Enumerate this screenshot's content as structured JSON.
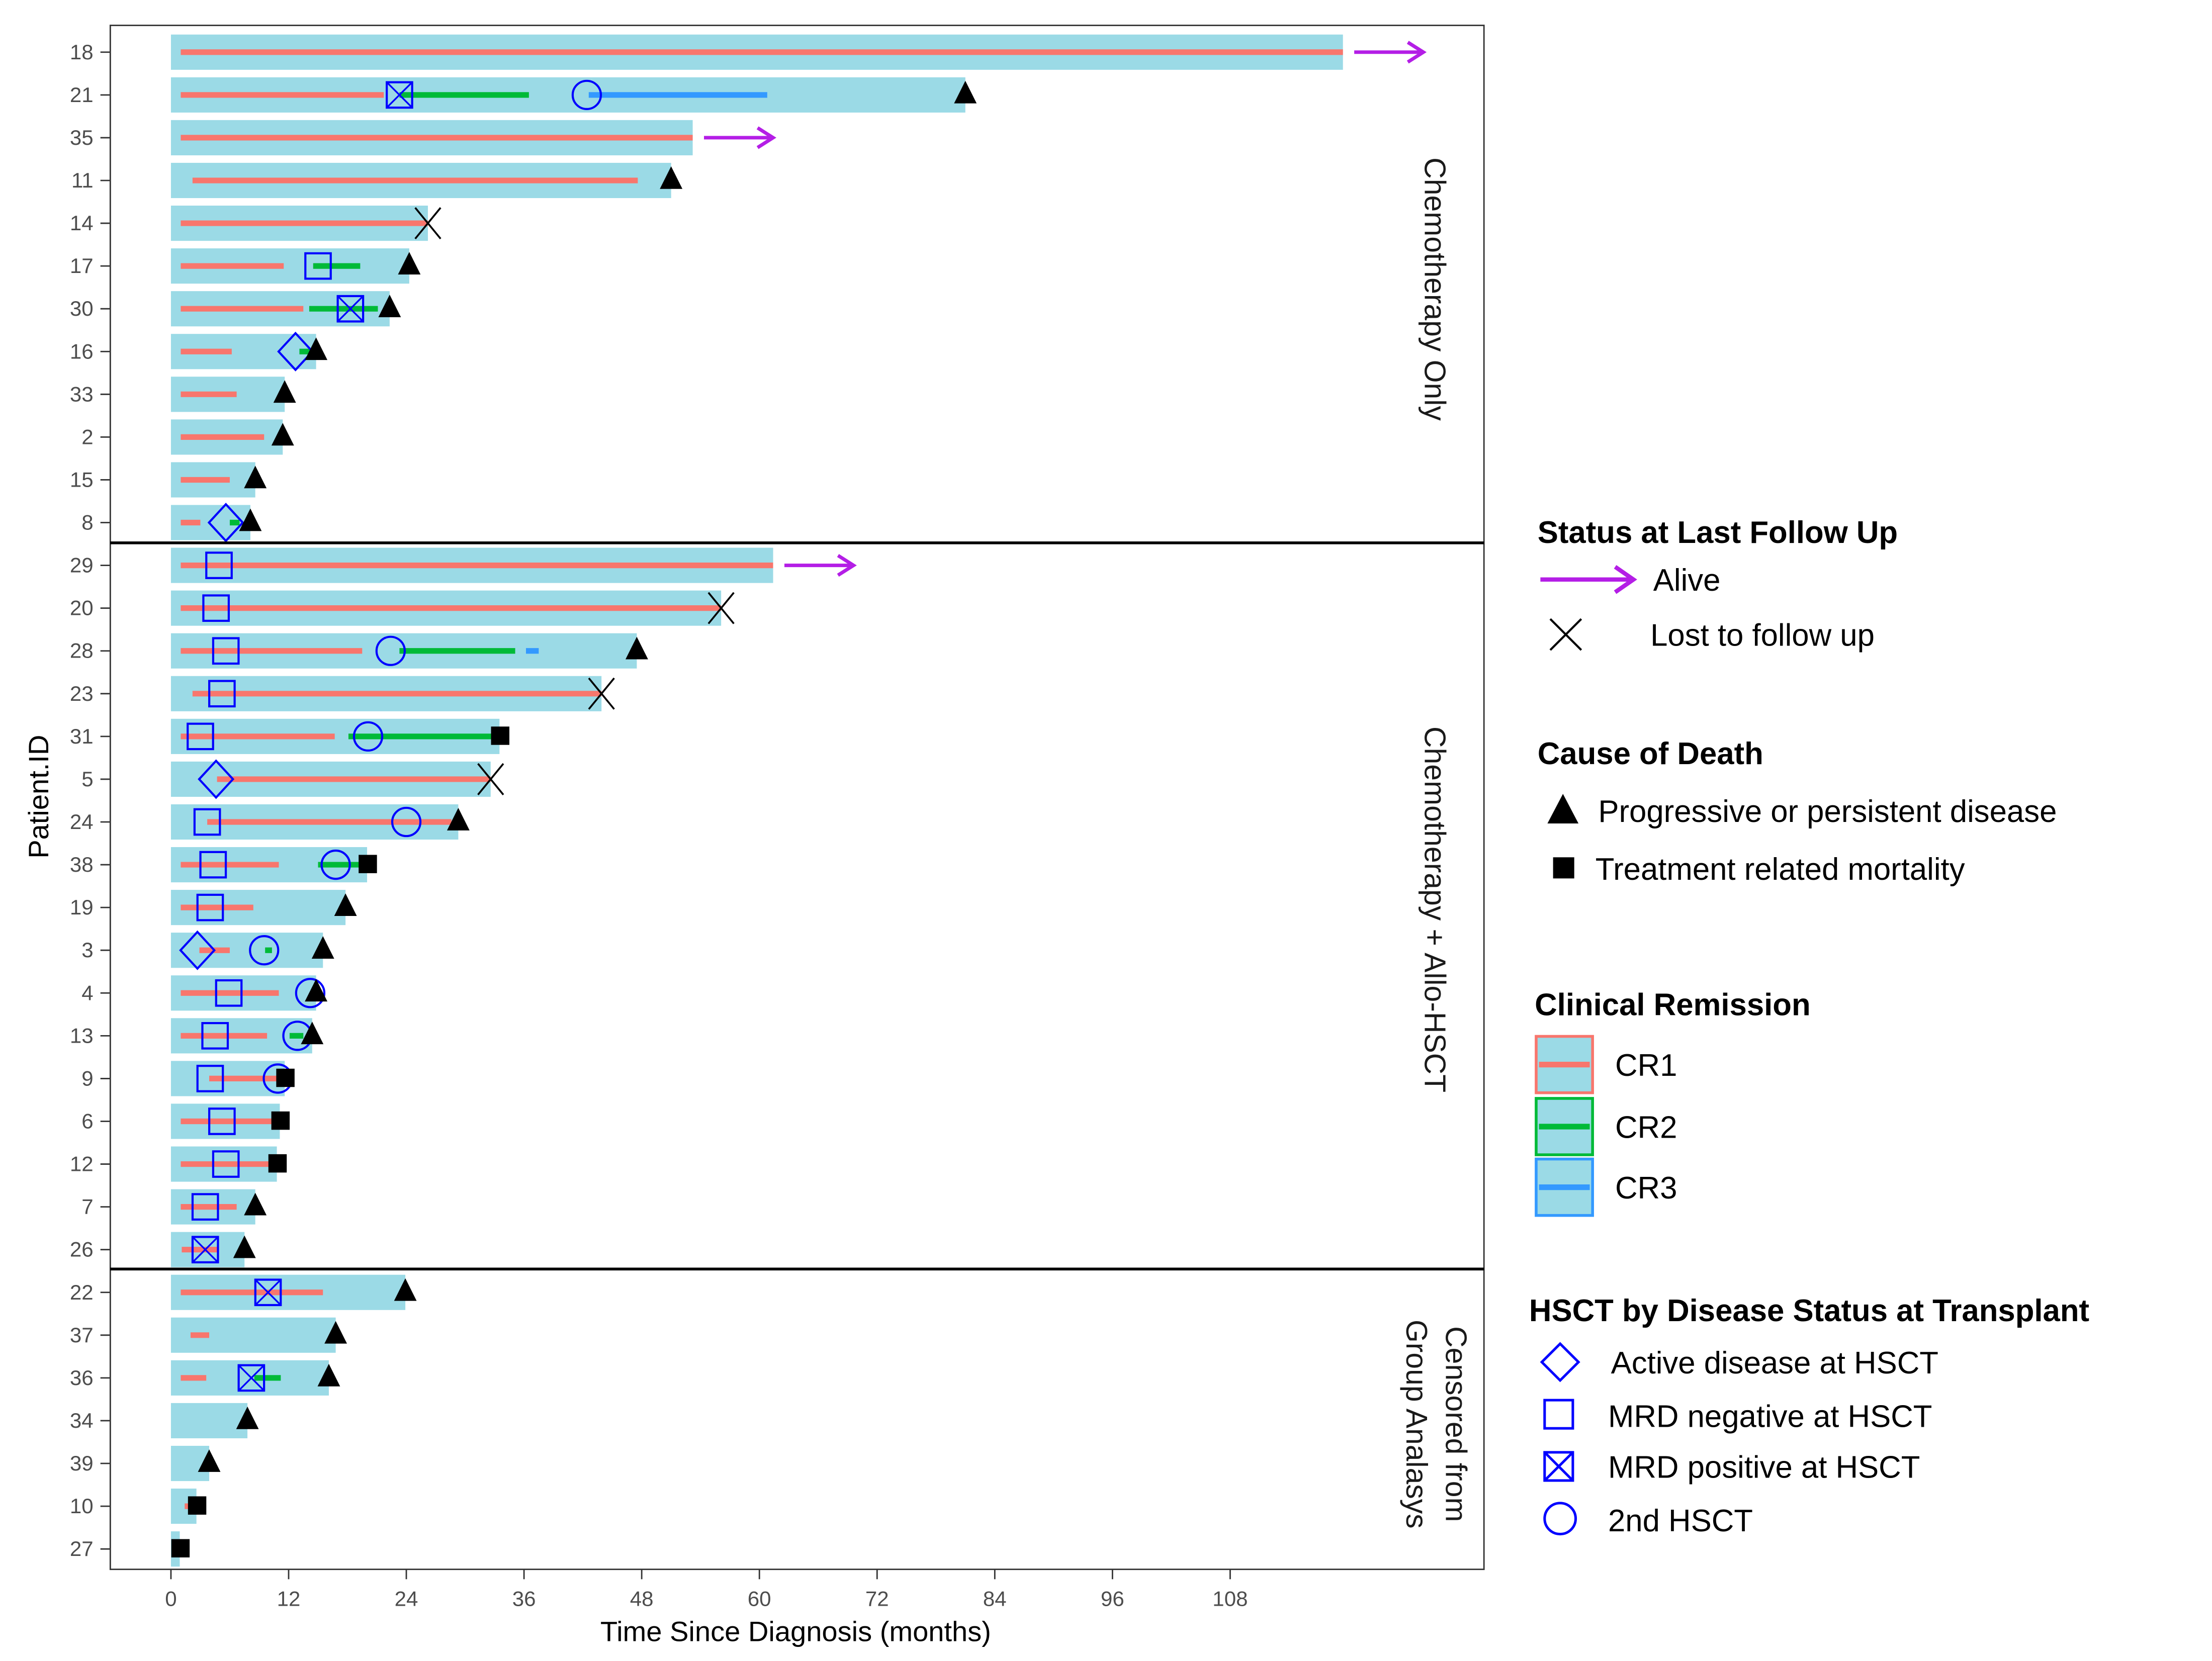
{
  "chart_data": {
    "type": "swimmer",
    "xlabel": "Time Since Diagnosis (months)",
    "ylabel": "Patient.ID",
    "xlim": [
      -10,
      124
    ],
    "xticks": [
      0,
      12,
      24,
      36,
      48,
      60,
      72,
      84,
      96,
      108
    ],
    "groups": [
      {
        "label": "Chemotherapy Only",
        "label_lines": [
          "Chemotherapy Only"
        ]
      },
      {
        "label": "Chemotherapy + Allo-HSCT",
        "label_lines": [
          "Chemotherapy + Allo-HSCT"
        ]
      },
      {
        "label": "Censored from Group Analasys",
        "label_lines": [
          "Censored from",
          "Group Analasys"
        ]
      }
    ],
    "colors": {
      "bar": "#9bdae6",
      "CR1": "#f8766d",
      "CR2": "#00ba38",
      "CR3": "#3399ff",
      "hsct": "#0000ff",
      "alive": "#b41ee6",
      "event": "#000000"
    },
    "patients": [
      {
        "id": "18",
        "group": 0,
        "end": 119.5,
        "status": "alive",
        "cr": [
          [
            1,
            119.5,
            1
          ]
        ],
        "hsct": []
      },
      {
        "id": "21",
        "group": 0,
        "end": 81,
        "status": "progressive",
        "cr": [
          [
            1,
            21.7,
            1
          ],
          [
            23.3,
            36.5,
            2
          ],
          [
            42.6,
            60.8,
            3
          ]
        ],
        "hsct": [
          {
            "type": "mrd_pos",
            "t": 23.3
          },
          {
            "type": "second",
            "t": 42.4
          }
        ]
      },
      {
        "id": "35",
        "group": 0,
        "end": 53.2,
        "status": "alive",
        "cr": [
          [
            1,
            53.2,
            1
          ]
        ],
        "hsct": []
      },
      {
        "id": "11",
        "group": 0,
        "end": 51,
        "status": "progressive",
        "cr": [
          [
            2.2,
            47.6,
            1
          ]
        ],
        "hsct": []
      },
      {
        "id": "14",
        "group": 0,
        "end": 26.2,
        "status": "lost",
        "cr": [
          [
            1,
            26.2,
            1
          ]
        ],
        "hsct": []
      },
      {
        "id": "17",
        "group": 0,
        "end": 24.3,
        "status": "progressive",
        "cr": [
          [
            1,
            11.5,
            1
          ],
          [
            14.5,
            19.3,
            2
          ]
        ],
        "hsct": [
          {
            "type": "mrd_neg",
            "t": 15
          }
        ]
      },
      {
        "id": "30",
        "group": 0,
        "end": 22.3,
        "status": "progressive",
        "cr": [
          [
            1,
            13.5,
            1
          ],
          [
            14.1,
            21.1,
            2
          ]
        ],
        "hsct": [
          {
            "type": "mrd_pos",
            "t": 18.3
          }
        ]
      },
      {
        "id": "16",
        "group": 0,
        "end": 14.8,
        "status": "progressive",
        "cr": [
          [
            1,
            6.2,
            1
          ],
          [
            13.1,
            14.5,
            2
          ]
        ],
        "hsct": [
          {
            "type": "active",
            "t": 12.7
          }
        ]
      },
      {
        "id": "33",
        "group": 0,
        "end": 11.6,
        "status": "progressive",
        "cr": [
          [
            1,
            6.7,
            1
          ]
        ],
        "hsct": []
      },
      {
        "id": "2",
        "group": 0,
        "end": 11.4,
        "status": "progressive",
        "cr": [
          [
            1,
            9.5,
            1
          ]
        ],
        "hsct": []
      },
      {
        "id": "15",
        "group": 0,
        "end": 8.6,
        "status": "progressive",
        "cr": [
          [
            1,
            6,
            1
          ]
        ],
        "hsct": []
      },
      {
        "id": "8",
        "group": 0,
        "end": 8.1,
        "status": "progressive",
        "cr": [
          [
            1,
            3,
            1
          ],
          [
            6,
            7,
            2
          ]
        ],
        "hsct": [
          {
            "type": "active",
            "t": 5.6
          }
        ]
      },
      {
        "id": "29",
        "group": 1,
        "end": 61.4,
        "status": "alive",
        "cr": [
          [
            1,
            61.4,
            1
          ]
        ],
        "hsct": [
          {
            "type": "mrd_neg",
            "t": 4.9
          }
        ]
      },
      {
        "id": "20",
        "group": 1,
        "end": 56.1,
        "status": "lost",
        "cr": [
          [
            1,
            56.1,
            1
          ]
        ],
        "hsct": [
          {
            "type": "mrd_neg",
            "t": 4.6
          }
        ]
      },
      {
        "id": "28",
        "group": 1,
        "end": 47.5,
        "status": "progressive",
        "cr": [
          [
            1,
            19.5,
            1
          ],
          [
            23.3,
            35.1,
            2
          ],
          [
            36.2,
            37.5,
            3
          ]
        ],
        "hsct": [
          {
            "type": "mrd_neg",
            "t": 5.6
          },
          {
            "type": "second",
            "t": 22.4
          }
        ]
      },
      {
        "id": "23",
        "group": 1,
        "end": 43.9,
        "status": "lost",
        "cr": [
          [
            2.2,
            43.9,
            1
          ]
        ],
        "hsct": [
          {
            "type": "mrd_neg",
            "t": 5.2
          }
        ]
      },
      {
        "id": "31",
        "group": 1,
        "end": 33.5,
        "status": "trm",
        "cr": [
          [
            1,
            16.7,
            1
          ],
          [
            18.1,
            33.1,
            2
          ]
        ],
        "hsct": [
          {
            "type": "mrd_neg",
            "t": 3
          },
          {
            "type": "second",
            "t": 20.1
          }
        ]
      },
      {
        "id": "5",
        "group": 1,
        "end": 32.6,
        "status": "lost",
        "cr": [
          [
            4.7,
            32.6,
            1
          ]
        ],
        "hsct": [
          {
            "type": "active",
            "t": 4.6
          }
        ]
      },
      {
        "id": "24",
        "group": 1,
        "end": 29.3,
        "status": "progressive",
        "cr": [
          [
            3.7,
            28.6,
            1
          ]
        ],
        "hsct": [
          {
            "type": "mrd_neg",
            "t": 3.7
          },
          {
            "type": "second",
            "t": 24
          }
        ]
      },
      {
        "id": "38",
        "group": 1,
        "end": 20,
        "status": "trm",
        "cr": [
          [
            1,
            11,
            1
          ],
          [
            15,
            19.4,
            2
          ]
        ],
        "hsct": [
          {
            "type": "mrd_neg",
            "t": 4.3
          },
          {
            "type": "second",
            "t": 16.8
          }
        ]
      },
      {
        "id": "19",
        "group": 1,
        "end": 17.8,
        "status": "progressive",
        "cr": [
          [
            1,
            8.4,
            1
          ]
        ],
        "hsct": [
          {
            "type": "mrd_neg",
            "t": 4
          }
        ]
      },
      {
        "id": "3",
        "group": 1,
        "end": 15.5,
        "status": "progressive",
        "cr": [
          [
            2.9,
            6,
            1
          ],
          [
            9.6,
            10.3,
            2
          ]
        ],
        "hsct": [
          {
            "type": "active",
            "t": 2.7
          },
          {
            "type": "second",
            "t": 9.5
          }
        ]
      },
      {
        "id": "4",
        "group": 1,
        "end": 14.8,
        "status": "progressive",
        "cr": [
          [
            1,
            11,
            1
          ]
        ],
        "hsct": [
          {
            "type": "mrd_neg",
            "t": 5.9
          },
          {
            "type": "second",
            "t": 14.2
          }
        ]
      },
      {
        "id": "13",
        "group": 1,
        "end": 14.4,
        "status": "progressive",
        "cr": [
          [
            1,
            9.8,
            1
          ],
          [
            12.1,
            13.5,
            2
          ]
        ],
        "hsct": [
          {
            "type": "mrd_neg",
            "t": 4.5
          },
          {
            "type": "second",
            "t": 12.9
          }
        ]
      },
      {
        "id": "9",
        "group": 1,
        "end": 11.6,
        "status": "trm",
        "cr": [
          [
            3.9,
            11.4,
            1
          ]
        ],
        "hsct": [
          {
            "type": "mrd_neg",
            "t": 4
          },
          {
            "type": "second",
            "t": 10.9
          }
        ]
      },
      {
        "id": "6",
        "group": 1,
        "end": 11.1,
        "status": "trm",
        "cr": [
          [
            1,
            11,
            1
          ]
        ],
        "hsct": [
          {
            "type": "mrd_neg",
            "t": 5.2
          }
        ]
      },
      {
        "id": "12",
        "group": 1,
        "end": 10.8,
        "status": "trm",
        "cr": [
          [
            1,
            10.8,
            1
          ]
        ],
        "hsct": [
          {
            "type": "mrd_neg",
            "t": 5.6
          }
        ]
      },
      {
        "id": "7",
        "group": 1,
        "end": 8.6,
        "status": "progressive",
        "cr": [
          [
            1,
            6.7,
            1
          ]
        ],
        "hsct": [
          {
            "type": "mrd_neg",
            "t": 3.5
          }
        ]
      },
      {
        "id": "26",
        "group": 1,
        "end": 7.5,
        "status": "progressive",
        "cr": [
          [
            1.1,
            4.9,
            1
          ]
        ],
        "hsct": [
          {
            "type": "mrd_pos",
            "t": 3.5
          }
        ]
      },
      {
        "id": "22",
        "group": 2,
        "end": 23.9,
        "status": "progressive",
        "cr": [
          [
            1,
            15.5,
            1
          ]
        ],
        "hsct": [
          {
            "type": "mrd_pos",
            "t": 9.9
          }
        ]
      },
      {
        "id": "37",
        "group": 2,
        "end": 16.8,
        "status": "progressive",
        "cr": [
          [
            2,
            3.9,
            1
          ]
        ],
        "hsct": []
      },
      {
        "id": "36",
        "group": 2,
        "end": 16.1,
        "status": "progressive",
        "cr": [
          [
            1,
            3.6,
            1
          ],
          [
            8.5,
            11.2,
            2
          ]
        ],
        "hsct": [
          {
            "type": "mrd_pos",
            "t": 8.2
          }
        ]
      },
      {
        "id": "34",
        "group": 2,
        "end": 7.8,
        "status": "progressive",
        "cr": [],
        "hsct": []
      },
      {
        "id": "39",
        "group": 2,
        "end": 3.9,
        "status": "progressive",
        "cr": [],
        "hsct": []
      },
      {
        "id": "10",
        "group": 2,
        "end": 2.6,
        "status": "trm",
        "cr": [
          [
            1.4,
            2.3,
            1
          ]
        ],
        "hsct": []
      },
      {
        "id": "27",
        "group": 2,
        "end": 0.9,
        "status": "trm",
        "cr": [],
        "hsct": []
      }
    ],
    "legend": {
      "status": {
        "title": "Status at Last Follow Up",
        "alive": "Alive",
        "lost": "Lost to follow up"
      },
      "death": {
        "title": "Cause of Death",
        "progressive": "Progressive or persistent disease",
        "trm": "Treatment related mortality"
      },
      "remission": {
        "title": "Clinical Remission",
        "cr1": "CR1",
        "cr2": "CR2",
        "cr3": "CR3"
      },
      "hsct": {
        "title": "HSCT by Disease Status at Transplant",
        "active": "Active disease at HSCT",
        "mrd_neg": "MRD negative at HSCT",
        "mrd_pos": "MRD positive at HSCT",
        "second": "2nd HSCT"
      }
    }
  }
}
